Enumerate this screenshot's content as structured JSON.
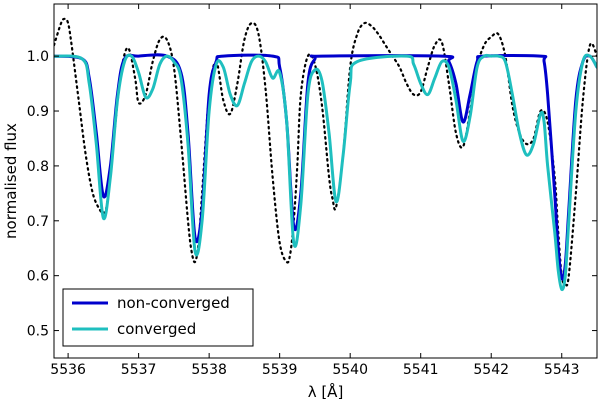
{
  "chart_data": {
    "type": "line",
    "title": "",
    "xlabel": "λ [Å]",
    "ylabel": "normalised flux",
    "xlim": [
      5535.8,
      5543.5
    ],
    "ylim": [
      0.45,
      1.095
    ],
    "xticks": [
      "5536",
      "5537",
      "5538",
      "5539",
      "5540",
      "5541",
      "5542",
      "5543"
    ],
    "xtick_values": [
      5536,
      5537,
      5538,
      5539,
      5540,
      5541,
      5542,
      5543
    ],
    "yticks": [
      "0.5",
      "0.6",
      "0.7",
      "0.8",
      "0.9",
      "1.0"
    ],
    "ytick_values": [
      0.5,
      0.6,
      0.7,
      0.8,
      0.9,
      1.0
    ],
    "grid": false,
    "legend_position": "lower-left",
    "legend": {
      "entries": [
        {
          "label": "non-converged",
          "color": "#0000cc"
        },
        {
          "label": "converged",
          "color": "#1fbfbf"
        }
      ]
    },
    "series": [
      {
        "name": "observed",
        "style": "dotted",
        "color": "#000000",
        "x": [
          5535.8,
          5535.9,
          5535.95,
          5536.0,
          5536.05,
          5536.15,
          5536.25,
          5536.35,
          5536.45,
          5536.5,
          5536.55,
          5536.65,
          5536.75,
          5536.85,
          5536.95,
          5537.0,
          5537.1,
          5537.2,
          5537.3,
          5537.4,
          5537.5,
          5537.6,
          5537.7,
          5537.75,
          5537.8,
          5537.85,
          5537.9,
          5538.0,
          5538.1,
          5538.2,
          5538.3,
          5538.4,
          5538.5,
          5538.6,
          5538.7,
          5538.8,
          5538.9,
          5539.0,
          5539.1,
          5539.15,
          5539.2,
          5539.25,
          5539.3,
          5539.4,
          5539.5,
          5539.6,
          5539.7,
          5539.75,
          5539.8,
          5539.9,
          5540.0,
          5540.1,
          5540.2,
          5540.3,
          5540.4,
          5540.5,
          5540.6,
          5540.7,
          5540.8,
          5540.9,
          5541.0,
          5541.1,
          5541.2,
          5541.3,
          5541.4,
          5541.5,
          5541.6,
          5541.7,
          5541.8,
          5541.9,
          5542.0,
          5542.1,
          5542.2,
          5542.3,
          5542.4,
          5542.5,
          5542.6,
          5542.7,
          5542.8,
          5542.9,
          5542.95,
          5543.0,
          5543.05,
          5543.1,
          5543.2,
          5543.3,
          5543.4,
          5543.5
        ],
        "y": [
          1.02,
          1.06,
          1.068,
          1.06,
          1.02,
          0.92,
          0.82,
          0.75,
          0.72,
          0.715,
          0.73,
          0.85,
          0.97,
          1.015,
          0.96,
          0.915,
          0.93,
          0.99,
          1.03,
          1.03,
          0.98,
          0.85,
          0.7,
          0.645,
          0.625,
          0.66,
          0.75,
          0.93,
          0.99,
          0.92,
          0.895,
          0.95,
          1.03,
          1.06,
          1.04,
          0.94,
          0.78,
          0.66,
          0.625,
          0.64,
          0.7,
          0.8,
          0.93,
          1.0,
          0.985,
          0.91,
          0.78,
          0.74,
          0.725,
          0.82,
          0.98,
          1.04,
          1.06,
          1.055,
          1.04,
          1.02,
          1.0,
          0.98,
          0.95,
          0.93,
          0.935,
          0.98,
          1.02,
          1.025,
          0.95,
          0.86,
          0.835,
          0.9,
          0.98,
          1.02,
          1.035,
          1.04,
          1.0,
          0.91,
          0.86,
          0.84,
          0.85,
          0.9,
          0.88,
          0.78,
          0.68,
          0.6,
          0.585,
          0.6,
          0.75,
          0.92,
          1.02,
          1.0
        ]
      },
      {
        "name": "non-converged",
        "style": "solid",
        "color": "#0000cc",
        "x": [
          5535.8,
          5536.2,
          5536.3,
          5536.4,
          5536.5,
          5536.6,
          5536.7,
          5536.8,
          5537.0,
          5537.4,
          5537.6,
          5537.7,
          5537.8,
          5537.9,
          5538.0,
          5538.1,
          5538.2,
          5538.9,
          5539.0,
          5539.1,
          5539.2,
          5539.3,
          5539.4,
          5539.5,
          5539.6,
          5541.3,
          5541.4,
          5541.5,
          5541.6,
          5541.7,
          5541.8,
          5541.9,
          5542.7,
          5542.75,
          5542.8,
          5542.9,
          5542.95,
          5543.0,
          5543.05,
          5543.1,
          5543.2,
          5543.3,
          5543.4,
          5543.5
        ],
        "y": [
          1.0,
          0.995,
          0.96,
          0.86,
          0.745,
          0.8,
          0.93,
          0.995,
          1.0,
          1.0,
          0.97,
          0.86,
          0.67,
          0.72,
          0.93,
          0.99,
          1.0,
          1.0,
          0.98,
          0.88,
          0.69,
          0.75,
          0.95,
          0.995,
          1.0,
          1.0,
          0.99,
          0.95,
          0.88,
          0.93,
          0.99,
          1.0,
          1.0,
          0.99,
          0.93,
          0.75,
          0.65,
          0.595,
          0.62,
          0.72,
          0.92,
          0.99,
          1.0,
          0.98
        ]
      },
      {
        "name": "converged",
        "style": "solid",
        "color": "#1fbfbf",
        "x": [
          5535.8,
          5536.2,
          5536.3,
          5536.4,
          5536.5,
          5536.6,
          5536.7,
          5536.8,
          5536.9,
          5537.0,
          5537.1,
          5537.2,
          5537.3,
          5537.4,
          5537.5,
          5537.6,
          5537.7,
          5537.8,
          5537.9,
          5538.0,
          5538.1,
          5538.2,
          5538.3,
          5538.4,
          5538.5,
          5538.6,
          5538.7,
          5538.8,
          5538.9,
          5539.0,
          5539.1,
          5539.2,
          5539.3,
          5539.4,
          5539.5,
          5539.6,
          5539.7,
          5539.8,
          5539.9,
          5540.0,
          5540.1,
          5540.8,
          5540.9,
          5541.0,
          5541.1,
          5541.2,
          5541.3,
          5541.4,
          5541.5,
          5541.6,
          5541.7,
          5541.8,
          5541.9,
          5542.0,
          5542.1,
          5542.2,
          5542.3,
          5542.4,
          5542.5,
          5542.6,
          5542.7,
          5542.75,
          5542.8,
          5542.9,
          5542.95,
          5543.0,
          5543.05,
          5543.1,
          5543.2,
          5543.3,
          5543.4,
          5543.5
        ],
        "y": [
          1.0,
          0.995,
          0.95,
          0.84,
          0.705,
          0.78,
          0.92,
          0.99,
          1.0,
          0.97,
          0.925,
          0.94,
          0.985,
          1.0,
          0.99,
          0.96,
          0.84,
          0.645,
          0.7,
          0.9,
          0.985,
          0.98,
          0.93,
          0.91,
          0.95,
          0.99,
          1.0,
          0.99,
          0.96,
          0.97,
          0.88,
          0.66,
          0.73,
          0.93,
          0.975,
          0.955,
          0.86,
          0.735,
          0.82,
          0.95,
          0.99,
          1.0,
          0.985,
          0.95,
          0.93,
          0.96,
          0.99,
          0.98,
          0.92,
          0.845,
          0.89,
          0.98,
          1.0,
          1.0,
          1.0,
          0.99,
          0.93,
          0.86,
          0.82,
          0.84,
          0.895,
          0.88,
          0.8,
          0.68,
          0.61,
          0.575,
          0.6,
          0.7,
          0.9,
          0.99,
          1.0,
          0.98
        ]
      }
    ]
  }
}
